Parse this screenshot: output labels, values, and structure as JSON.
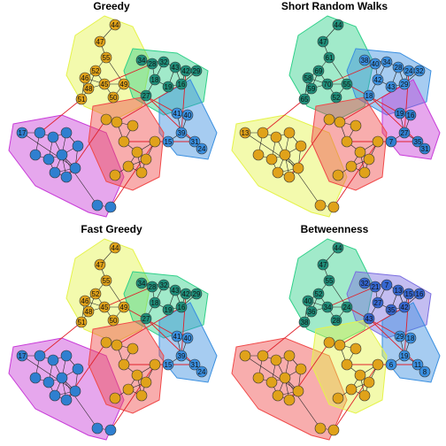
{
  "panels": [
    {
      "title": "Greedy",
      "communities": [
        {
          "color": "#e5f34a"
        },
        {
          "color": "#2fd089"
        },
        {
          "color": "#3a8fe0"
        },
        {
          "color": "#c83bd8"
        },
        {
          "color": "#f04a4a"
        }
      ],
      "labels": [
        "44",
        "47",
        "55",
        "52",
        "46",
        "48",
        "51",
        "45",
        "50",
        "49",
        "34",
        "28",
        "32",
        "43",
        "42",
        "29",
        "18",
        "19",
        "16",
        "27",
        "41",
        "40",
        "39",
        "31",
        "24",
        "15",
        "17"
      ]
    },
    {
      "title": "Short Random Walks",
      "communities": [
        {
          "color": "#2fd089"
        },
        {
          "color": "#3a8fe0"
        },
        {
          "color": "#c83bd8"
        },
        {
          "color": "#e5f34a"
        },
        {
          "color": "#f04a4a"
        }
      ],
      "labels": [
        "44",
        "47",
        "61",
        "69",
        "58",
        "59",
        "65",
        "70",
        "52",
        "55",
        "38",
        "40",
        "34",
        "28",
        "24",
        "32",
        "42",
        "43",
        "29",
        "18",
        "19",
        "16",
        "27",
        "35",
        "31",
        "7",
        "13"
      ]
    },
    {
      "title": "Fast Greedy",
      "communities": [
        {
          "color": "#e5f34a"
        },
        {
          "color": "#2fd089"
        },
        {
          "color": "#3a8fe0"
        },
        {
          "color": "#c83bd8"
        },
        {
          "color": "#f04a4a"
        }
      ],
      "labels": [
        "44",
        "47",
        "55",
        "52",
        "46",
        "48",
        "51",
        "45",
        "50",
        "49",
        "34",
        "28",
        "32",
        "43",
        "42",
        "29",
        "18",
        "19",
        "16",
        "27",
        "41",
        "40",
        "39",
        "31",
        "24",
        "15",
        "17"
      ]
    },
    {
      "title": "Betweenness",
      "communities": [
        {
          "color": "#2fd089"
        },
        {
          "color": "#7a6de0"
        },
        {
          "color": "#3a8fe0"
        },
        {
          "color": "#f04a4a"
        },
        {
          "color": "#e5f34a"
        }
      ],
      "labels": [
        "44",
        "47",
        "55",
        "52",
        "40",
        "36",
        "38",
        "34",
        "28",
        "24",
        "32",
        "21",
        "7",
        "13",
        "15",
        "16",
        "27",
        "35",
        "42",
        "43",
        "29",
        "18",
        "19",
        "11",
        "8",
        "6"
      ]
    }
  ],
  "edge_color_between": "#e0202a",
  "edge_color_within": "#222222"
}
